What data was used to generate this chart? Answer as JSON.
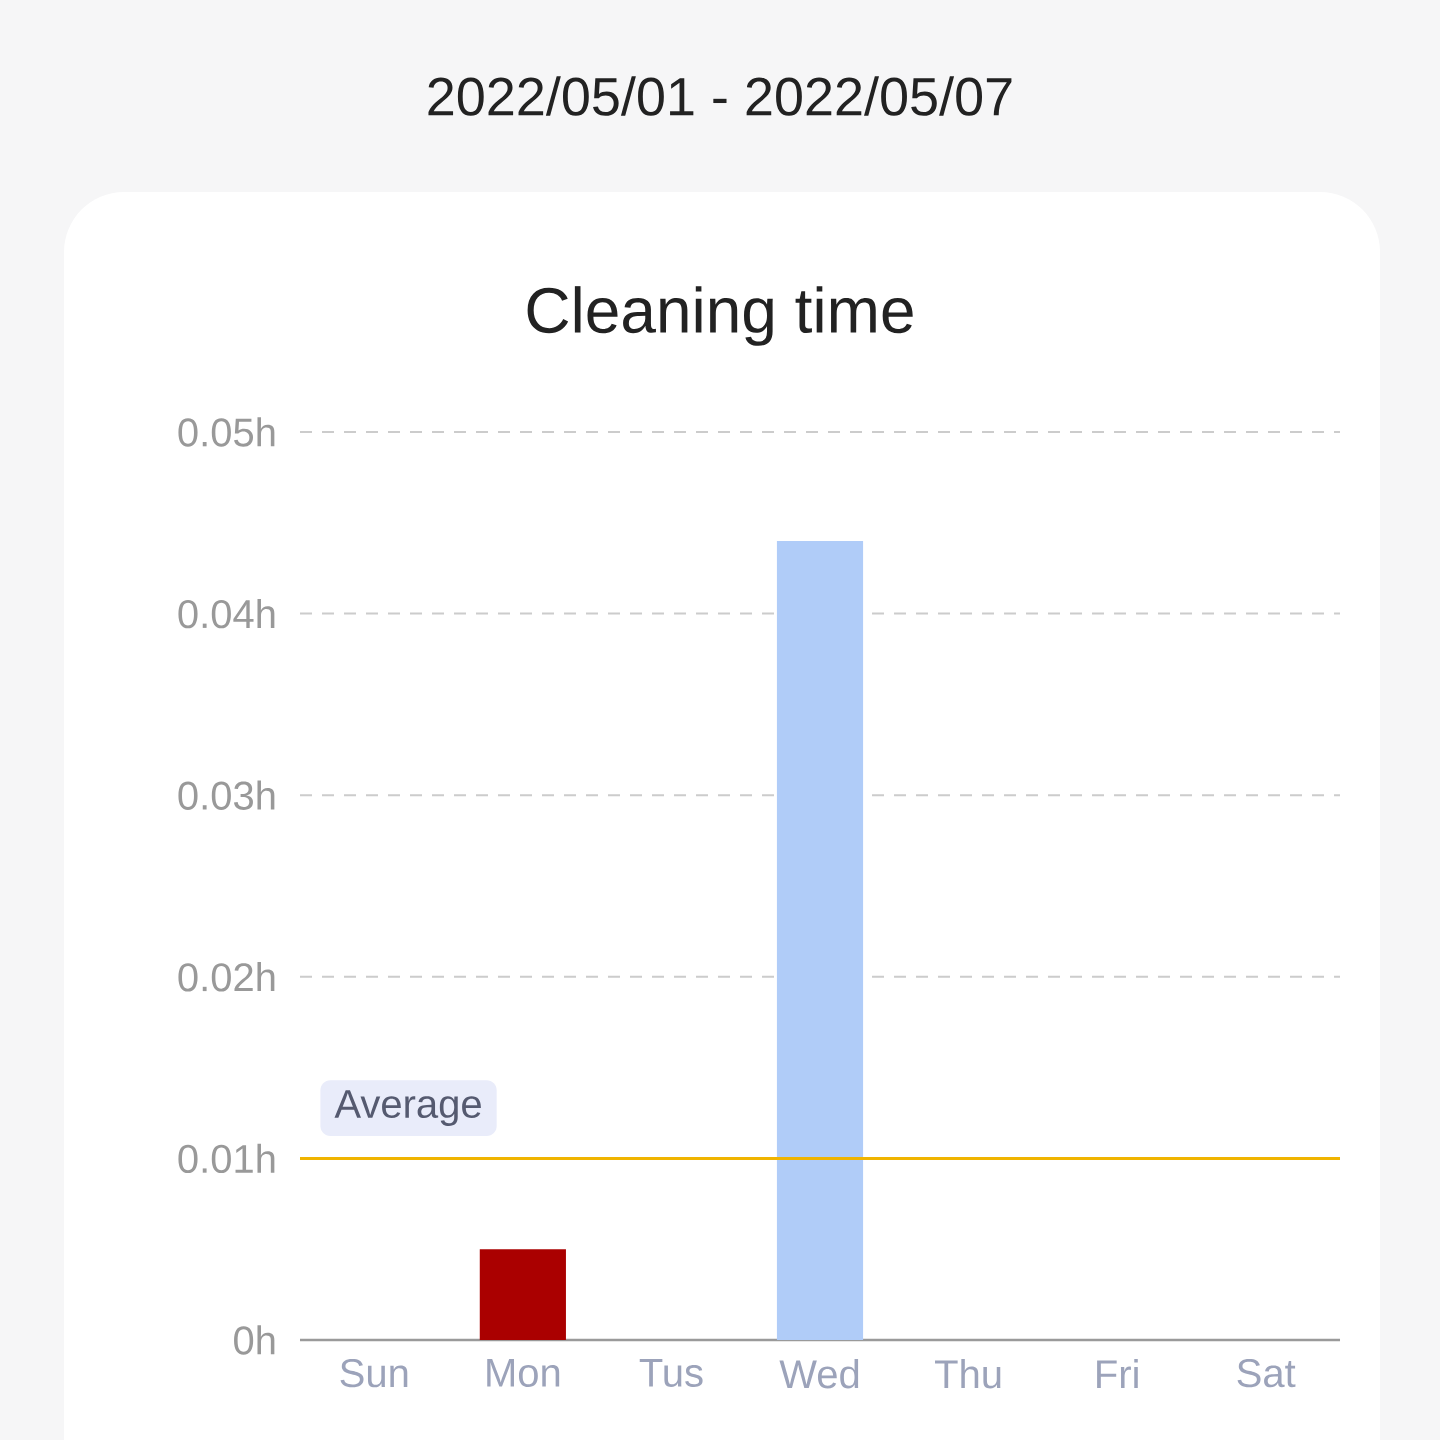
{
  "chart_data": {
    "type": "bar",
    "title": "Cleaning time",
    "subtitle": "2022/05/01 - 2022/05/07",
    "categories": [
      "Sun",
      "Mon",
      "Tus",
      "Wed",
      "Thu",
      "Fri",
      "Sat"
    ],
    "values": [
      0,
      0.005,
      0,
      0.044,
      0,
      0,
      0
    ],
    "colors": [
      "#b0ccf8",
      "#aa0000",
      "#b0ccf8",
      "#b0ccf8",
      "#b0ccf8",
      "#b0ccf8",
      "#b0ccf8"
    ],
    "ylim": [
      0,
      0.05
    ],
    "yticks": [
      {
        "value": 0,
        "label": "0h"
      },
      {
        "value": 0.01,
        "label": "0.01h"
      },
      {
        "value": 0.02,
        "label": "0.02h"
      },
      {
        "value": 0.03,
        "label": "0.03h"
      },
      {
        "value": 0.04,
        "label": "0.04h"
      },
      {
        "value": 0.05,
        "label": "0.05h"
      }
    ],
    "grid": "y",
    "ref_lines": [
      {
        "axis": "y",
        "value": 0.01,
        "label": "Average",
        "color": "#f0b400"
      }
    ]
  }
}
